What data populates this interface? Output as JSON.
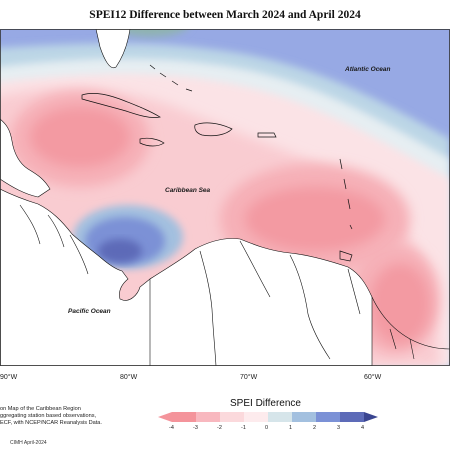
{
  "title": "SPEI12 Difference between March 2024 and April 2024",
  "map_labels": {
    "atlantic": "Atlantic Ocean",
    "caribbean": "Caribbean Sea",
    "pacific": "Pacific Ocean"
  },
  "longitude_ticks": [
    "90°W",
    "80°W",
    "70°W",
    "60°W"
  ],
  "notes": {
    "line1": "on Map of the Caribbean Region",
    "line2": "ggregating station based observations,",
    "line3": "ECF, with NCEP/NCAR Reanalysis Data."
  },
  "legend": {
    "title": "SPEI Difference",
    "ticks": [
      "-4",
      "-3",
      "-2",
      "-1",
      "0",
      "1",
      "2",
      "3",
      "4"
    ],
    "colors": [
      "#f4949b",
      "#f8b8bf",
      "#fbd9dc",
      "#fdebed",
      "#d6e5ea",
      "#a3c0df",
      "#7b91d6",
      "#5d6bb8",
      "#3a4590"
    ]
  },
  "credit": "CIMH April-2024"
}
